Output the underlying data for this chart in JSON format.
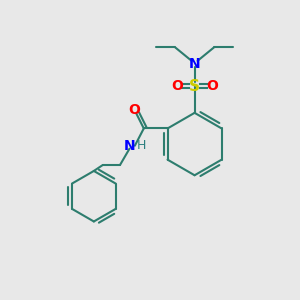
{
  "bg_color": "#e8e8e8",
  "bond_color": "#2d7d6e",
  "bond_width": 1.5,
  "N_color": "#0000ff",
  "O_color": "#ff0000",
  "S_color": "#cccc00",
  "H_color": "#2d8080",
  "text_fontsize": 10,
  "figsize": [
    3.0,
    3.0
  ],
  "dpi": 100,
  "xlim": [
    0,
    10
  ],
  "ylim": [
    0,
    10
  ]
}
